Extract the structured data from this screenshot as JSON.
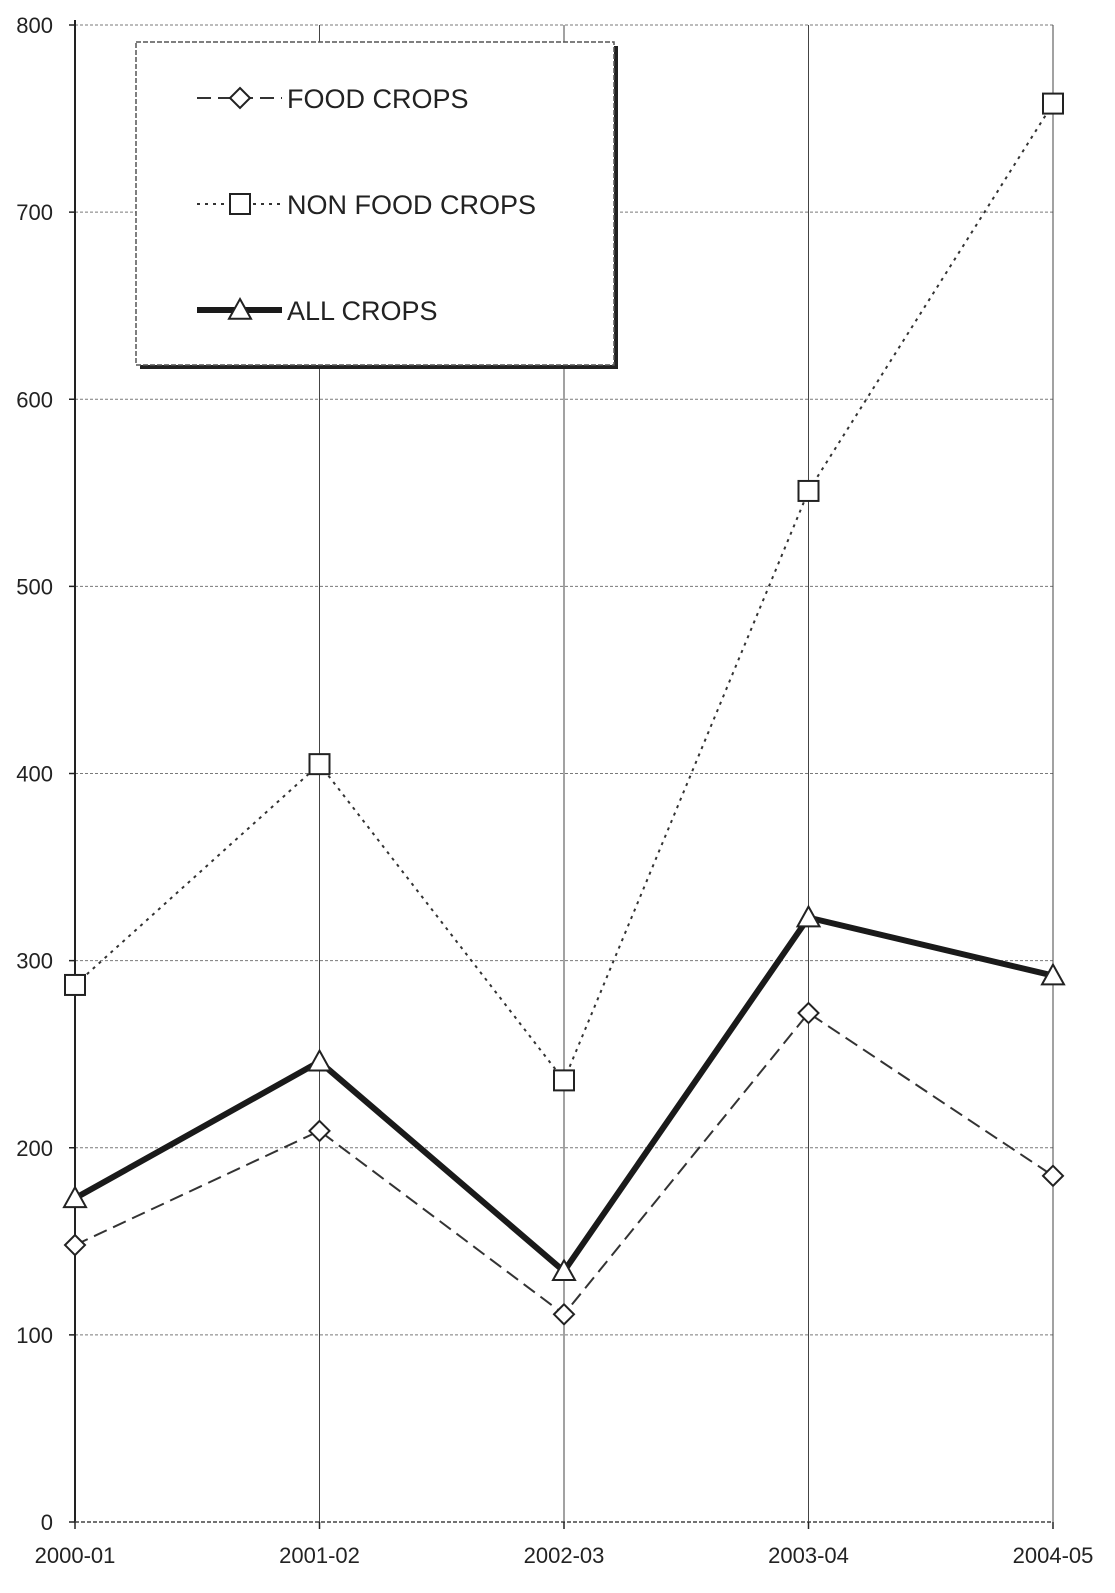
{
  "chart_data": {
    "type": "line",
    "title": "",
    "xlabel": "",
    "ylabel": "",
    "categories": [
      "2000-01",
      "2001-02",
      "2002-03",
      "2003-04",
      "2004-05"
    ],
    "ylim": [
      0,
      800
    ],
    "yticks": [
      0,
      100,
      200,
      300,
      400,
      500,
      600,
      700,
      800
    ],
    "grid": "on",
    "legend_position": "top-left",
    "series": [
      {
        "name": "FOOD CROPS",
        "values": [
          148,
          209,
          111,
          272,
          185
        ],
        "marker": "diamond",
        "line_style": "dashed",
        "color": "#333333"
      },
      {
        "name": "NON FOOD CROPS",
        "values": [
          287,
          405,
          236,
          551,
          758
        ],
        "marker": "square",
        "line_style": "dotted",
        "color": "#333333"
      },
      {
        "name": "ALL CROPS",
        "values": [
          173,
          246,
          134,
          323,
          292
        ],
        "marker": "triangle",
        "line_style": "solid-thick",
        "color": "#1a1a1a"
      }
    ]
  }
}
